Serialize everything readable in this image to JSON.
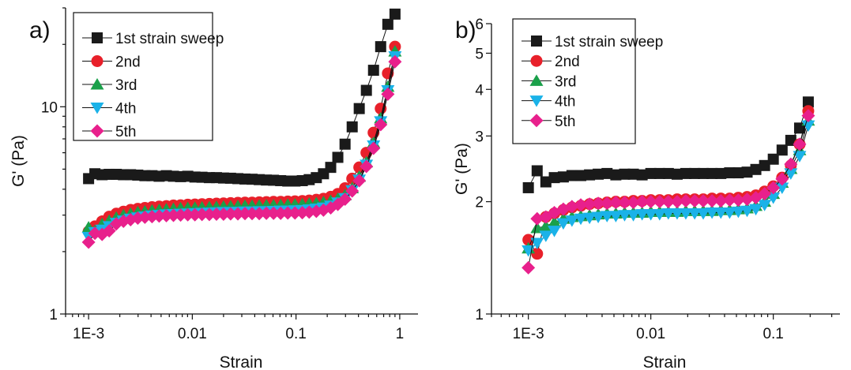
{
  "chart_data": [
    {
      "panel_label": "a)",
      "type": "scatter",
      "xlabel": "Strain",
      "ylabel": "G' (Pa)",
      "xscale": "log",
      "yscale": "log",
      "xlim": [
        0.0006,
        1.5
      ],
      "ylim": [
        1,
        30
      ],
      "x_ticks": [
        0.001,
        0.01,
        0.1,
        1
      ],
      "x_tick_labels": [
        "1E-3",
        "0.01",
        "0.1",
        "1"
      ],
      "y_ticks": [
        1,
        10
      ],
      "y_tick_labels": [
        "1",
        "10"
      ],
      "legend_position": "top-left",
      "x": [
        0.001,
        0.00115,
        0.00135,
        0.00158,
        0.00185,
        0.00217,
        0.00254,
        0.00298,
        0.00349,
        0.00409,
        0.00479,
        0.00562,
        0.00658,
        0.00771,
        0.00904,
        0.0106,
        0.0124,
        0.0146,
        0.0171,
        0.02,
        0.0234,
        0.0275,
        0.0322,
        0.0377,
        0.0442,
        0.0518,
        0.0607,
        0.0711,
        0.0833,
        0.0977,
        0.115,
        0.134,
        0.157,
        0.184,
        0.216,
        0.253,
        0.297,
        0.348,
        0.407,
        0.477,
        0.559,
        0.655,
        0.768,
        0.9
      ],
      "series": [
        {
          "name": "1st strain sweep",
          "marker": "square",
          "color": "#1a1a1a",
          "values": [
            4.5,
            4.75,
            4.7,
            4.72,
            4.72,
            4.7,
            4.7,
            4.68,
            4.65,
            4.65,
            4.62,
            4.65,
            4.62,
            4.6,
            4.62,
            4.58,
            4.57,
            4.55,
            4.55,
            4.53,
            4.52,
            4.5,
            4.48,
            4.47,
            4.45,
            4.43,
            4.42,
            4.4,
            4.38,
            4.38,
            4.4,
            4.45,
            4.55,
            4.75,
            5.1,
            5.7,
            6.6,
            8.0,
            9.8,
            12.0,
            15.0,
            19.5,
            25.0,
            28.0
          ]
        },
        {
          "name": "2nd",
          "marker": "circle",
          "color": "#e8202a",
          "values": [
            2.5,
            2.65,
            2.8,
            2.95,
            3.05,
            3.12,
            3.18,
            3.22,
            3.25,
            3.28,
            3.3,
            3.32,
            3.34,
            3.35,
            3.37,
            3.38,
            3.39,
            3.4,
            3.41,
            3.42,
            3.43,
            3.44,
            3.45,
            3.45,
            3.46,
            3.47,
            3.48,
            3.48,
            3.49,
            3.5,
            3.51,
            3.53,
            3.56,
            3.6,
            3.68,
            3.8,
            4.05,
            4.5,
            5.1,
            6.0,
            7.5,
            9.8,
            14.5,
            19.5
          ]
        },
        {
          "name": "3rd",
          "marker": "triangle-up",
          "color": "#1aa04a",
          "values": [
            2.62,
            2.52,
            2.72,
            2.82,
            2.92,
            3.0,
            3.05,
            3.1,
            3.13,
            3.16,
            3.18,
            3.2,
            3.22,
            3.24,
            3.25,
            3.26,
            3.27,
            3.28,
            3.29,
            3.3,
            3.31,
            3.32,
            3.33,
            3.33,
            3.34,
            3.35,
            3.35,
            3.36,
            3.37,
            3.38,
            3.39,
            3.41,
            3.43,
            3.47,
            3.52,
            3.6,
            3.75,
            4.05,
            4.6,
            5.4,
            6.7,
            8.8,
            12.5,
            18.5
          ]
        },
        {
          "name": "4th",
          "marker": "triangle-down",
          "color": "#1ab2e8",
          "values": [
            2.35,
            2.48,
            2.55,
            2.65,
            2.75,
            2.82,
            2.88,
            2.92,
            2.95,
            2.98,
            3.0,
            3.02,
            3.03,
            3.04,
            3.05,
            3.06,
            3.07,
            3.08,
            3.09,
            3.1,
            3.1,
            3.11,
            3.12,
            3.12,
            3.13,
            3.13,
            3.14,
            3.15,
            3.15,
            3.16,
            3.17,
            3.19,
            3.22,
            3.26,
            3.33,
            3.45,
            3.62,
            3.95,
            4.45,
            5.25,
            6.5,
            8.5,
            12.0,
            17.5
          ]
        },
        {
          "name": "5th",
          "marker": "diamond",
          "color": "#e8208c",
          "values": [
            2.22,
            2.45,
            2.42,
            2.52,
            2.72,
            2.8,
            2.85,
            2.9,
            2.93,
            2.95,
            2.97,
            2.98,
            2.99,
            3.0,
            3.01,
            3.01,
            3.02,
            3.02,
            3.03,
            3.03,
            3.04,
            3.04,
            3.05,
            3.05,
            3.05,
            3.06,
            3.06,
            3.06,
            3.07,
            3.07,
            3.08,
            3.1,
            3.13,
            3.17,
            3.25,
            3.38,
            3.58,
            3.92,
            4.4,
            5.15,
            6.3,
            8.2,
            11.5,
            16.5
          ]
        }
      ]
    },
    {
      "panel_label": "b)",
      "type": "scatter",
      "xlabel": "Strain",
      "ylabel": "G' (Pa)",
      "xscale": "log",
      "yscale": "log",
      "xlim": [
        0.0005,
        0.35
      ],
      "ylim": [
        1,
        6
      ],
      "x_ticks": [
        0.001,
        0.01,
        0.1
      ],
      "x_tick_labels": [
        "1E-3",
        "0.01",
        "0.1"
      ],
      "y_ticks": [
        1,
        2,
        3,
        4,
        5,
        6
      ],
      "y_tick_labels": [
        "1",
        "2",
        "3",
        "4",
        "5",
        "6"
      ],
      "legend_position": "top-left",
      "x": [
        0.001,
        0.00118,
        0.00139,
        0.00163,
        0.00193,
        0.00227,
        0.00268,
        0.00316,
        0.00372,
        0.00439,
        0.00518,
        0.00611,
        0.0072,
        0.00849,
        0.01,
        0.0118,
        0.0139,
        0.0164,
        0.0193,
        0.0228,
        0.0268,
        0.0316,
        0.0373,
        0.044,
        0.0518,
        0.0611,
        0.072,
        0.0849,
        0.1,
        0.118,
        0.139,
        0.164,
        0.193
      ],
      "series": [
        {
          "name": "1st strain sweep",
          "marker": "square",
          "color": "#1a1a1a",
          "values": [
            2.18,
            2.42,
            2.26,
            2.32,
            2.33,
            2.35,
            2.35,
            2.36,
            2.37,
            2.38,
            2.36,
            2.37,
            2.37,
            2.36,
            2.38,
            2.38,
            2.38,
            2.37,
            2.38,
            2.38,
            2.38,
            2.38,
            2.38,
            2.39,
            2.39,
            2.4,
            2.44,
            2.5,
            2.6,
            2.75,
            2.92,
            3.15,
            3.7
          ]
        },
        {
          "name": "2nd",
          "marker": "circle",
          "color": "#e8202a",
          "values": [
            1.58,
            1.45,
            1.82,
            1.86,
            1.9,
            1.93,
            1.95,
            1.97,
            1.98,
            1.99,
            2.0,
            2.0,
            2.01,
            2.01,
            2.02,
            2.02,
            2.02,
            2.03,
            2.03,
            2.03,
            2.03,
            2.04,
            2.04,
            2.04,
            2.05,
            2.06,
            2.08,
            2.13,
            2.2,
            2.32,
            2.5,
            2.85,
            3.5
          ]
        },
        {
          "name": "3rd",
          "marker": "triangle-up",
          "color": "#1aa04a",
          "values": [
            1.5,
            1.7,
            1.72,
            1.76,
            1.8,
            1.82,
            1.83,
            1.84,
            1.85,
            1.86,
            1.86,
            1.87,
            1.87,
            1.87,
            1.88,
            1.88,
            1.88,
            1.88,
            1.89,
            1.89,
            1.89,
            1.89,
            1.9,
            1.9,
            1.91,
            1.92,
            1.95,
            2.0,
            2.1,
            2.25,
            2.45,
            2.75,
            3.3
          ]
        },
        {
          "name": "4th",
          "marker": "triangle-down",
          "color": "#1ab2e8",
          "values": [
            1.48,
            1.55,
            1.62,
            1.67,
            1.75,
            1.78,
            1.8,
            1.81,
            1.82,
            1.83,
            1.83,
            1.84,
            1.84,
            1.85,
            1.85,
            1.85,
            1.86,
            1.86,
            1.86,
            1.86,
            1.86,
            1.87,
            1.87,
            1.87,
            1.88,
            1.89,
            1.91,
            1.96,
            2.05,
            2.18,
            2.38,
            2.65,
            3.2
          ]
        },
        {
          "name": "5th",
          "marker": "diamond",
          "color": "#e8208c",
          "values": [
            1.33,
            1.8,
            1.82,
            1.87,
            1.91,
            1.94,
            1.96,
            1.97,
            1.98,
            1.98,
            1.99,
            1.99,
            1.99,
            2.0,
            2.0,
            2.0,
            2.0,
            2.0,
            2.01,
            2.01,
            2.01,
            2.01,
            2.01,
            2.02,
            2.02,
            2.03,
            2.05,
            2.1,
            2.18,
            2.3,
            2.52,
            2.85,
            3.4
          ]
        }
      ]
    }
  ]
}
